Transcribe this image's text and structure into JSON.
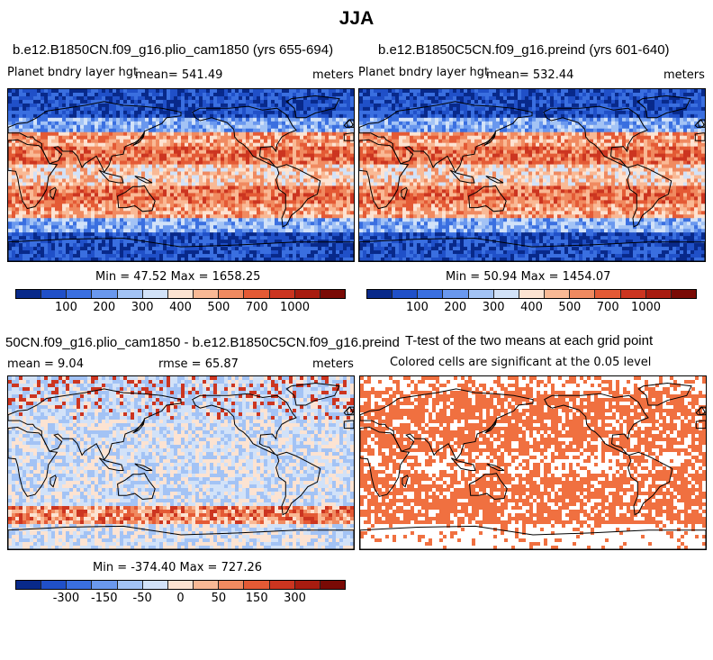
{
  "title": "JJA",
  "colors": {
    "abs_scale": [
      "#08298a",
      "#2050c8",
      "#3a6fe0",
      "#6a98ee",
      "#a3c3f5",
      "#d2e2f8",
      "#fce3d2",
      "#f9b995",
      "#f08a60",
      "#e45a35",
      "#cc3520",
      "#a81c10",
      "#7a0a05"
    ],
    "diff_scale": [
      "#08298a",
      "#2050c8",
      "#3a6fe0",
      "#6a98ee",
      "#a3c3f5",
      "#d2e2f8",
      "#fce3d2",
      "#f9b995",
      "#f08a60",
      "#e45a35",
      "#cc3520",
      "#a81c10",
      "#7a0a05"
    ],
    "significant": "#f07040",
    "land_line": "#000000"
  },
  "panel1": {
    "title": "b.e12.B1850CN.f09_g16.plio_cam1850 (yrs 655-694)",
    "variable": "Planet bndry layer hgt",
    "mean_label": "mean= 541.49",
    "units": "meters",
    "minmax": "Min =  47.52 Max = 1658.25"
  },
  "panel2": {
    "title": "b.e12.B1850C5CN.f09_g16.preind (yrs 601-640)",
    "variable": "Planet bndry layer hgt",
    "mean_label": "mean= 532.44",
    "units": "meters",
    "minmax": "Min =  50.94 Max = 1454.07"
  },
  "panel3": {
    "title": "50CN.f09_g16.plio_cam1850 - b.e12.B1850C5CN.f09_g16.preind",
    "mean_label": "mean =    9.04",
    "rmse_label": "rmse =   65.87",
    "units": "meters",
    "minmax": "Min = -374.40 Max = 727.26"
  },
  "panel4": {
    "title": "T-test of the two means at each grid point",
    "subtitle": "Colored cells are significant at the 0.05 level"
  },
  "abs_colorbar_labels": [
    "100",
    "200",
    "300",
    "400",
    "500",
    "700",
    "1000"
  ],
  "diff_colorbar_labels": [
    "-300",
    "-150",
    "-50",
    "0",
    "50",
    "150",
    "300"
  ]
}
